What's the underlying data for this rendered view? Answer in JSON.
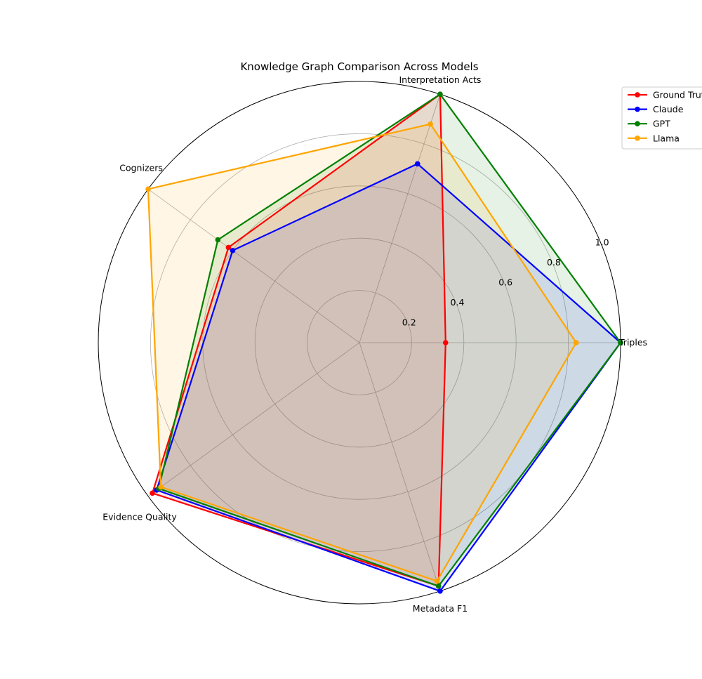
{
  "chart_data": {
    "type": "radar",
    "title": "Knowledge Graph Comparison Across Models",
    "axes": [
      "Triples",
      "Interpretation Acts",
      "Cognizers",
      "Evidence Quality",
      "Metadata F1"
    ],
    "rlim": [
      0,
      1.0
    ],
    "rticks": [
      "0.2",
      "0.4",
      "0.6",
      "0.8",
      "1.0"
    ],
    "rtick_values": [
      0.2,
      0.4,
      0.6,
      0.8,
      1.0
    ],
    "grid": true,
    "legend_position": "top-right",
    "series": [
      {
        "name": "Ground Truth",
        "color": "#ff0000",
        "values": [
          0.33,
          1.0,
          0.62,
          0.98,
          0.98
        ]
      },
      {
        "name": "Claude",
        "color": "#0000ff",
        "values": [
          1.0,
          0.72,
          0.6,
          0.96,
          1.0
        ]
      },
      {
        "name": "GPT",
        "color": "#008000",
        "values": [
          1.0,
          1.0,
          0.67,
          0.95,
          0.98
        ]
      },
      {
        "name": "Llama",
        "color": "#ffa500",
        "values": [
          0.83,
          0.88,
          1.0,
          0.94,
          0.96
        ]
      }
    ]
  }
}
